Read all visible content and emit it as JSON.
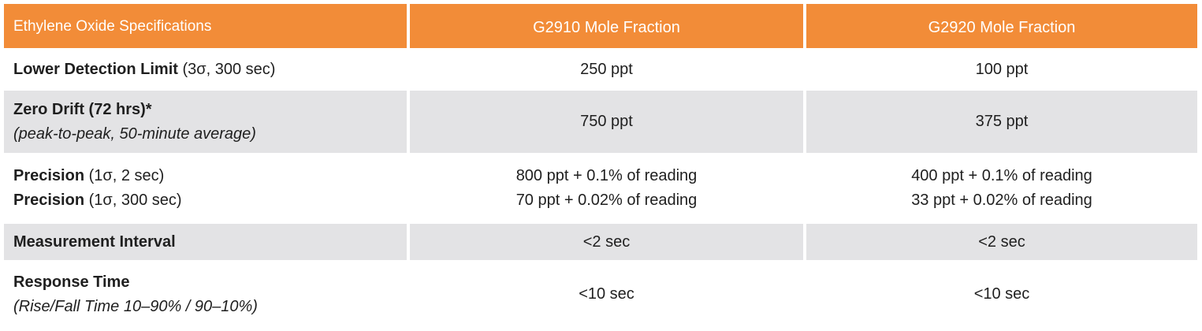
{
  "header": {
    "col1": "Ethylene Oxide Specifications",
    "col2": "G2910 Mole Fraction",
    "col3": "G2920 Mole Fraction"
  },
  "rows": [
    {
      "label": "Lower Detection Limit",
      "label_paren": " (3σ, 300 sec)",
      "g2910": "250 ppt",
      "g2920": "100 ppt"
    },
    {
      "label": "Zero Drift (72 hrs)*",
      "label_sub": "(peak-to-peak, 50-minute average)",
      "g2910": "750 ppt",
      "g2920": "375 ppt"
    },
    {
      "label": "Precision",
      "label_paren": " (1σ, 2 sec)",
      "label2": "Precision",
      "label2_paren": " (1σ, 300 sec)",
      "g2910": "800 ppt + 0.1% of reading",
      "g2910_2": "70 ppt + 0.02% of reading",
      "g2920": "400 ppt + 0.1% of reading",
      "g2920_2": "33 ppt + 0.02% of reading"
    },
    {
      "label": "Measurement Interval",
      "g2910": "<2 sec",
      "g2920": "<2 sec"
    },
    {
      "label": "Response Time",
      "label_sub": "(Rise/Fall Time 10–90% / 90–10%)",
      "g2910": "<10 sec",
      "g2920": "<10 sec"
    }
  ],
  "colors": {
    "header_bg": "#f28c38",
    "header_text": "#ffffff",
    "row_gray": "#e3e3e5",
    "row_white": "#ffffff"
  }
}
